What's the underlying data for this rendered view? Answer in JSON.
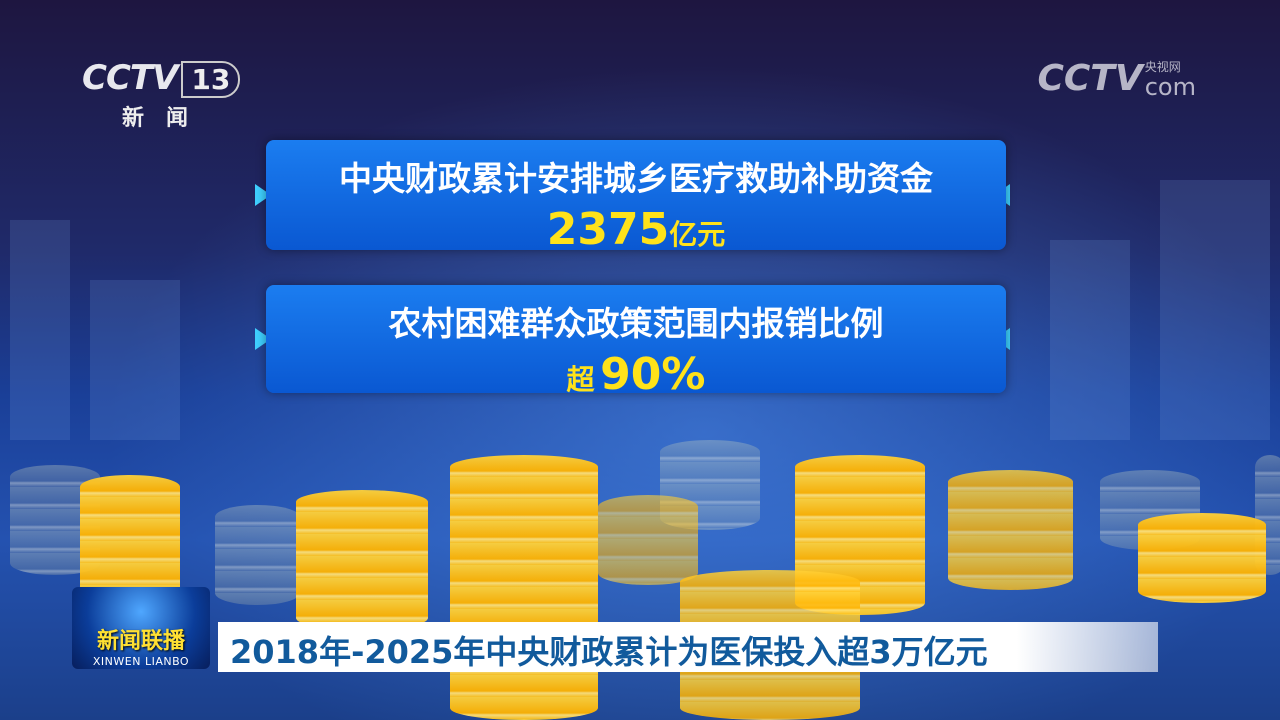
{
  "channel_logo": {
    "brand": "CCTV",
    "number": "13",
    "name": "新闻"
  },
  "watermark": {
    "brand": "CCTV",
    "cn": "央视网",
    "suffix": "com"
  },
  "panels": [
    {
      "title": "中央财政累计安排城乡医疗救助补助资金",
      "prefix": "",
      "value": "2375",
      "unit": "亿元"
    },
    {
      "title": "农村困难群众政策范围内报销比例",
      "prefix": "超",
      "value": "90%",
      "unit": ""
    }
  ],
  "program_badge": {
    "cn": "新闻联播",
    "en": "XINWEN LIANBO"
  },
  "headline": "2018年-2025年中央财政累计为医保投入超3万亿元",
  "colors": {
    "panel": "#0a62dc",
    "value": "#ffe21a",
    "arrow": "#3fd0ff",
    "headline_text": "#115a9c"
  }
}
